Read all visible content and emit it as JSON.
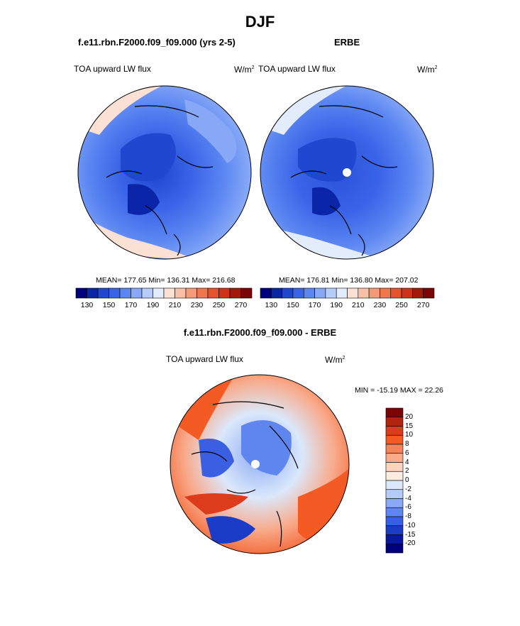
{
  "title": "DJF",
  "panels": {
    "model": {
      "title": "f.e11.rbn.F2000.f09_f09.000 (yrs 2-5)",
      "variable": "TOA upward LW flux",
      "units_base": "W/m",
      "units_exp": "2",
      "stats": "MEAN= 177.65  Min= 136.31  Max= 216.68"
    },
    "obs": {
      "title": "ERBE",
      "variable": "TOA upward LW flux",
      "units_base": "W/m",
      "units_exp": "2",
      "stats": "MEAN= 176.81  Min= 136.80  Max= 207.02"
    },
    "diff": {
      "title": "f.e11.rbn.F2000.f09_f09.000 - ERBE",
      "variable": "TOA upward LW flux",
      "units_base": "W/m",
      "units_exp": "2",
      "stats": "MIN = -15.19 MAX =  22.26"
    }
  },
  "colorbar_abs": {
    "labels": [
      "130",
      "150",
      "170",
      "190",
      "210",
      "230",
      "250",
      "270"
    ],
    "colors": [
      "#00007f",
      "#0a25a8",
      "#1f47d0",
      "#3a64e8",
      "#5b86f2",
      "#86a8f7",
      "#b6ccfa",
      "#e2ecfb",
      "#fbe1d4",
      "#f8c0a6",
      "#f59a78",
      "#f0764c",
      "#e4532c",
      "#cc3317",
      "#a41a0a",
      "#7c0404"
    ]
  },
  "colorbar_diff": {
    "labels": [
      "20",
      "15",
      "10",
      "8",
      "6",
      "4",
      "2",
      "0",
      "-2",
      "-4",
      "-6",
      "-8",
      "-10",
      "-15",
      "-20"
    ],
    "colors": [
      "#7c0404",
      "#b0250e",
      "#dc3c1b",
      "#f35a24",
      "#f5825a",
      "#f8aa8a",
      "#fbd3be",
      "#fcecdf",
      "#dbe8fb",
      "#b4cbf8",
      "#8aa9f4",
      "#5f86ee",
      "#3a5fe2",
      "#1b3cc6",
      "#09199c",
      "#00007f"
    ]
  },
  "chart_data": [
    {
      "type": "heatmap",
      "projection": "north-polar-stereographic",
      "title": "f.e11.rbn.F2000.f09_f09.000 (yrs 2-5)",
      "variable": "TOA upward LW flux",
      "units": "W/m2",
      "mean": 177.65,
      "min": 136.31,
      "max": 216.68,
      "colorbar_levels": [
        130,
        150,
        170,
        190,
        210,
        230,
        250,
        270
      ]
    },
    {
      "type": "heatmap",
      "projection": "north-polar-stereographic",
      "title": "ERBE",
      "variable": "TOA upward LW flux",
      "units": "W/m2",
      "mean": 176.81,
      "min": 136.8,
      "max": 207.02,
      "colorbar_levels": [
        130,
        150,
        170,
        190,
        210,
        230,
        250,
        270
      ]
    },
    {
      "type": "heatmap",
      "projection": "north-polar-stereographic",
      "title": "f.e11.rbn.F2000.f09_f09.000 - ERBE",
      "variable": "TOA upward LW flux",
      "units": "W/m2",
      "min": -15.19,
      "max": 22.26,
      "colorbar_levels": [
        20,
        15,
        10,
        8,
        6,
        4,
        2,
        0,
        -2,
        -4,
        -6,
        -8,
        -10,
        -15,
        -20
      ]
    }
  ]
}
